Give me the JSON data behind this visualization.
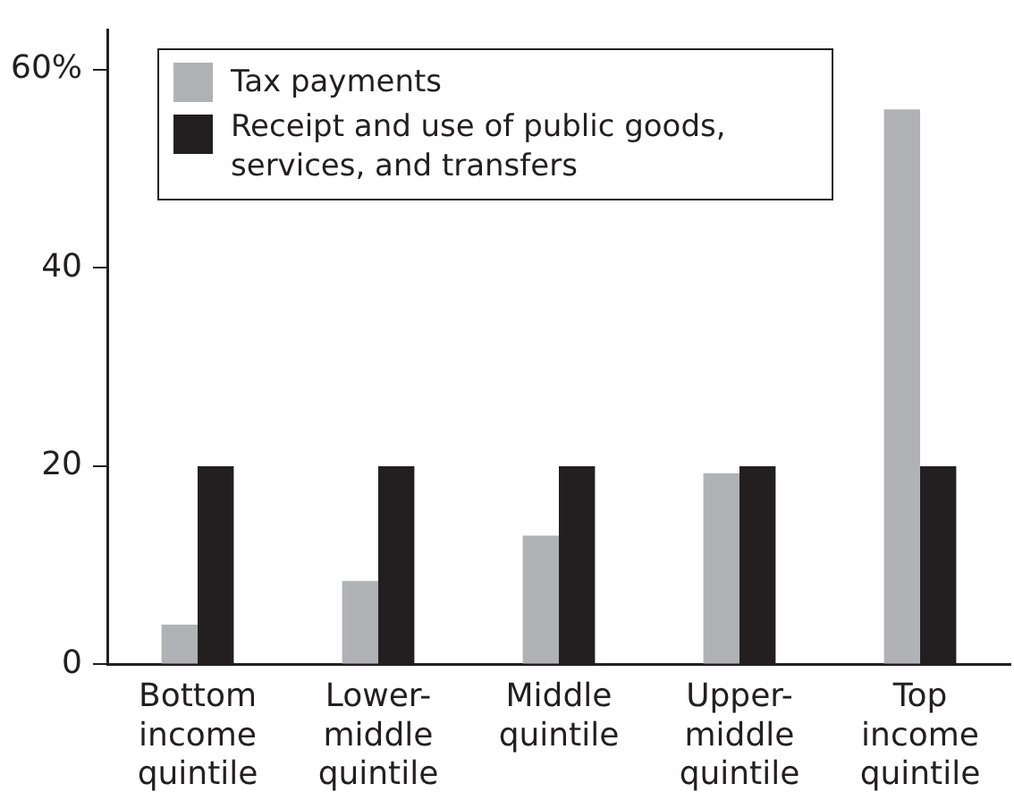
{
  "chart_data": {
    "type": "bar",
    "categories": [
      "Bottom\nincome\nquintile",
      "Lower-\nmiddle\nquintile",
      "Middle\nquintile",
      "Upper-\nmiddle\nquintile",
      "Top\nincome\nquintile"
    ],
    "series": [
      {
        "name": "Tax payments",
        "color": "#b1b2b5",
        "values": [
          4,
          8.4,
          13,
          19.3,
          56
        ]
      },
      {
        "name": "Receipt and use of public goods, services, and transfers",
        "color": "#231f20",
        "values": [
          20,
          20,
          20,
          20,
          20
        ]
      }
    ],
    "ylim": [
      0,
      64
    ],
    "yticks": [
      0,
      20,
      40,
      {
        "value": 60,
        "label": "60%"
      }
    ],
    "grid": false,
    "legend": "top"
  }
}
